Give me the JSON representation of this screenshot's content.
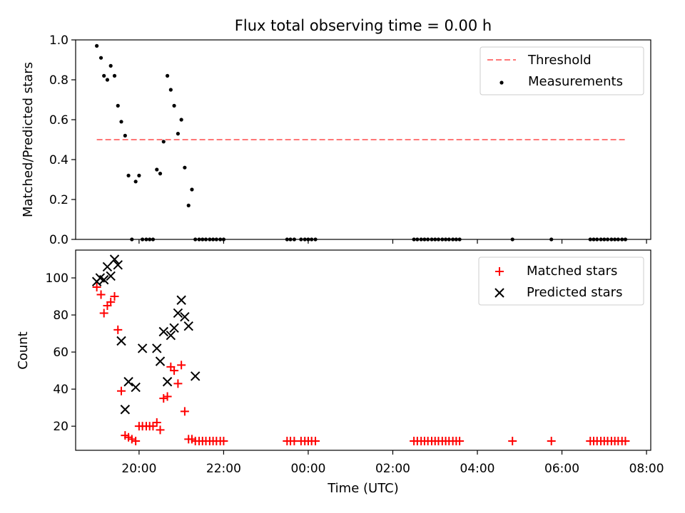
{
  "title": "Flux total observing time = 0.00 h",
  "xlabel": "Time (UTC)",
  "x_ticks": [
    "20:00",
    "22:00",
    "00:00",
    "02:00",
    "04:00",
    "06:00",
    "08:00"
  ],
  "colors": {
    "threshold": "#ff7777",
    "measurements": "#000000",
    "matched": "#ff0000",
    "predicted": "#000000"
  },
  "chart_data": [
    {
      "type": "scatter",
      "ylabel": "Matched/Predicted stars",
      "ylim": [
        0,
        1.0
      ],
      "yticks": [
        "0.0",
        "0.2",
        "0.4",
        "0.6",
        "0.8",
        "1.0"
      ],
      "xlim_hours": [
        -5.5,
        8.1
      ],
      "grid": false,
      "legend_position": "upper right",
      "series": [
        {
          "name": "Threshold",
          "kind": "dashed-line",
          "x": [
            -5.0,
            7.5
          ],
          "y": [
            0.5,
            0.5
          ]
        },
        {
          "name": "Measurements",
          "kind": "dots",
          "x": [
            -5.0,
            -4.9,
            -4.83,
            -4.75,
            -4.67,
            -4.58,
            -4.5,
            -4.42,
            -4.33,
            -4.25,
            -4.17,
            -4.08,
            -4.0,
            -3.92,
            -3.83,
            -3.75,
            -3.67,
            -3.58,
            -3.5,
            -3.42,
            -3.33,
            -3.25,
            -3.17,
            -3.08,
            -3.0,
            -2.92,
            -2.83,
            -2.75,
            -2.67,
            -2.58,
            -2.5,
            -2.42,
            -2.33,
            -2.25,
            -2.17,
            -2.08,
            -2.0,
            -0.5,
            -0.42,
            -0.33,
            -0.17,
            -0.08,
            0.0,
            0.08,
            0.17,
            2.5,
            2.58,
            2.67,
            2.75,
            2.83,
            2.92,
            3.0,
            3.08,
            3.17,
            3.25,
            3.33,
            3.42,
            3.5,
            3.58,
            4.83,
            5.75,
            6.67,
            6.75,
            6.83,
            6.92,
            7.0,
            7.08,
            7.17,
            7.25,
            7.33,
            7.42,
            7.5
          ],
          "y": [
            0.97,
            0.91,
            0.82,
            0.8,
            0.87,
            0.82,
            0.67,
            0.59,
            0.52,
            0.32,
            0.0,
            0.29,
            0.32,
            0.0,
            0.0,
            0.0,
            0.0,
            0.35,
            0.33,
            0.49,
            0.82,
            0.75,
            0.67,
            0.53,
            0.6,
            0.36,
            0.17,
            0.25,
            0.0,
            0.0,
            0.0,
            0.0,
            0.0,
            0.0,
            0.0,
            0.0,
            0.0,
            0.0,
            0.0,
            0.0,
            0.0,
            0.0,
            0.0,
            0.0,
            0.0,
            0.0,
            0.0,
            0.0,
            0.0,
            0.0,
            0.0,
            0.0,
            0.0,
            0.0,
            0.0,
            0.0,
            0.0,
            0.0,
            0.0,
            0.0,
            0.0,
            0.0,
            0.0,
            0.0,
            0.0,
            0.0,
            0.0,
            0.0,
            0.0,
            0.0,
            0.0,
            0.0
          ]
        }
      ]
    },
    {
      "type": "scatter",
      "ylabel": "Count",
      "ylim": [
        7,
        115
      ],
      "yticks": [
        "20",
        "40",
        "60",
        "80",
        "100"
      ],
      "xlim_hours": [
        -5.5,
        8.1
      ],
      "grid": false,
      "legend_position": "upper right",
      "series": [
        {
          "name": "Matched stars",
          "kind": "plus",
          "x": [
            -5.0,
            -4.9,
            -4.83,
            -4.75,
            -4.67,
            -4.58,
            -4.5,
            -4.42,
            -4.33,
            -4.25,
            -4.17,
            -4.08,
            -4.0,
            -3.92,
            -3.83,
            -3.75,
            -3.67,
            -3.58,
            -3.5,
            -3.42,
            -3.33,
            -3.25,
            -3.17,
            -3.08,
            -3.0,
            -2.92,
            -2.83,
            -2.75,
            -2.67,
            -2.58,
            -2.5,
            -2.42,
            -2.33,
            -2.25,
            -2.17,
            -2.08,
            -2.0,
            -0.5,
            -0.42,
            -0.33,
            -0.17,
            -0.08,
            0.0,
            0.08,
            0.17,
            2.5,
            2.58,
            2.67,
            2.75,
            2.83,
            2.92,
            3.0,
            3.08,
            3.17,
            3.25,
            3.33,
            3.42,
            3.5,
            3.58,
            4.83,
            5.75,
            6.67,
            6.75,
            6.83,
            6.92,
            7.0,
            7.08,
            7.17,
            7.25,
            7.33,
            7.42,
            7.5
          ],
          "y": [
            95,
            91,
            81,
            85,
            87,
            90,
            72,
            39,
            15,
            14,
            13,
            12,
            20,
            20,
            20,
            20,
            20,
            22,
            18,
            35,
            36,
            52,
            50,
            43,
            53,
            28,
            13,
            13,
            12,
            12,
            12,
            12,
            12,
            12,
            12,
            12,
            12,
            12,
            12,
            12,
            12,
            12,
            12,
            12,
            12,
            12,
            12,
            12,
            12,
            12,
            12,
            12,
            12,
            12,
            12,
            12,
            12,
            12,
            12,
            12,
            12,
            12,
            12,
            12,
            12,
            12,
            12,
            12,
            12,
            12,
            12,
            12
          ]
        },
        {
          "name": "Predicted stars",
          "kind": "cross",
          "x": [
            -5.0,
            -4.92,
            -4.83,
            -4.75,
            -4.67,
            -4.58,
            -4.5,
            -4.42,
            -4.33,
            -4.25,
            -4.08,
            -3.92,
            -3.58,
            -3.5,
            -3.42,
            -3.33,
            -3.25,
            -3.17,
            -3.08,
            -3.0,
            -2.92,
            -2.83,
            -2.67
          ],
          "y": [
            98,
            100,
            99,
            106,
            101,
            110,
            107,
            66,
            29,
            44,
            41,
            62,
            62,
            55,
            71,
            44,
            69,
            73,
            81,
            88,
            79,
            74,
            47
          ]
        }
      ]
    }
  ]
}
